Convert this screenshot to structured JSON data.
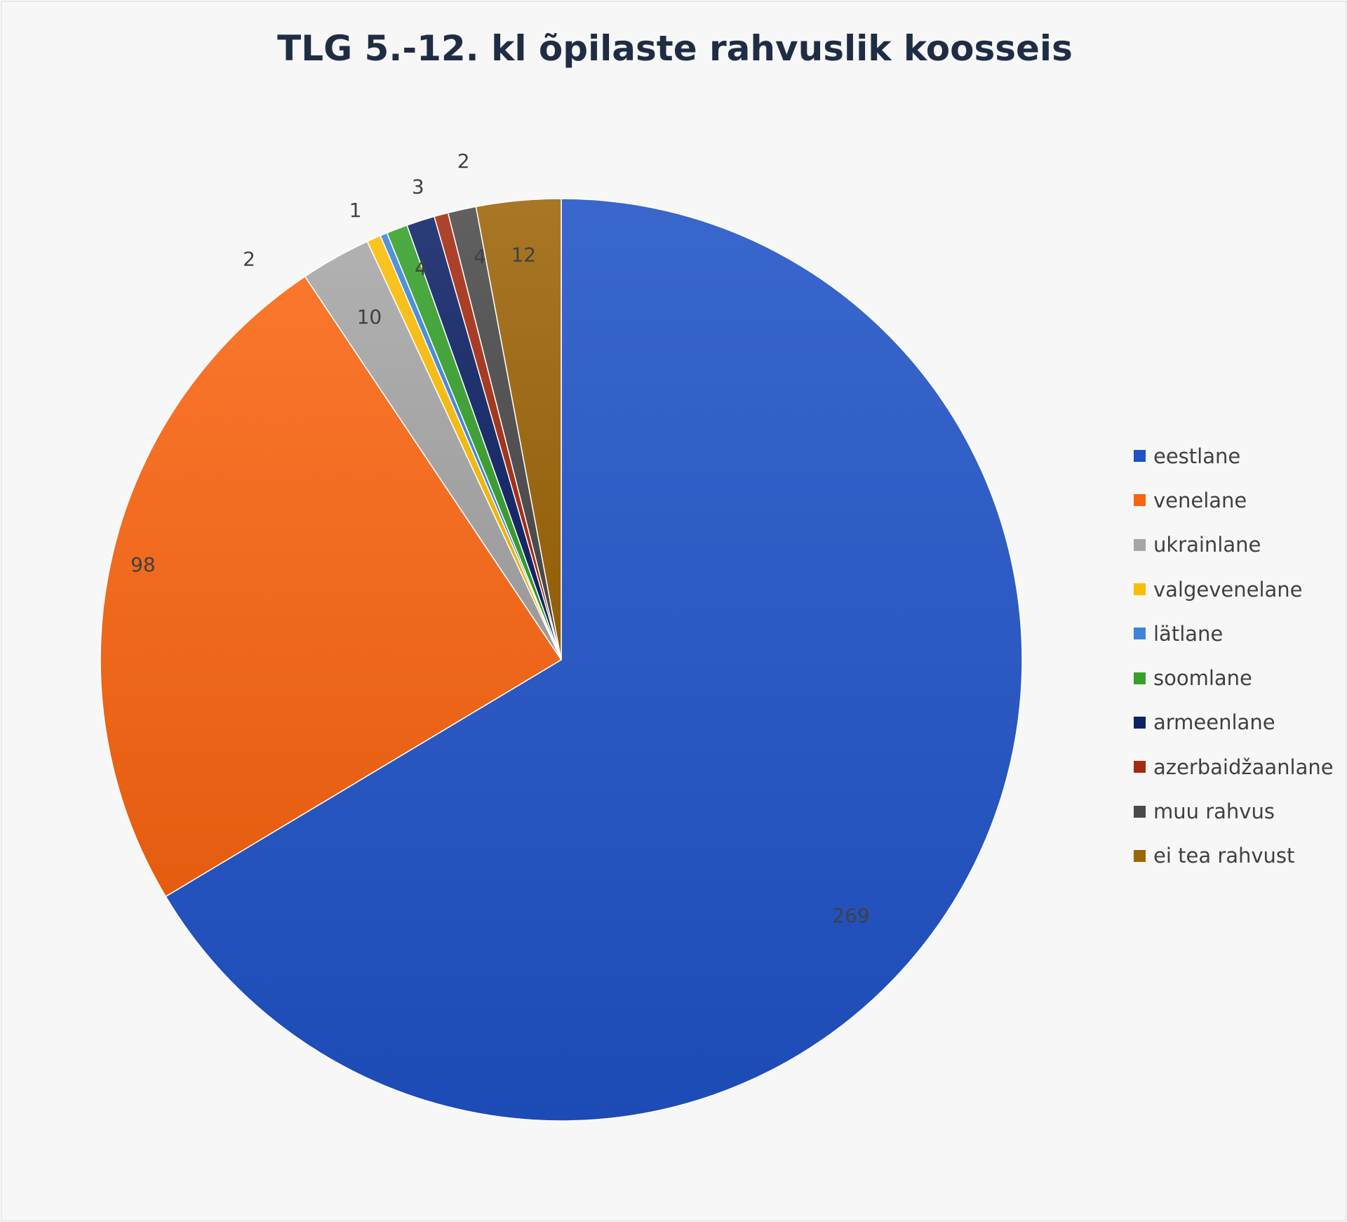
{
  "chart_data": {
    "type": "pie",
    "title": "TLG 5.-12. kl õpilaste rahvuslik koosseis",
    "categories": [
      "eestlane",
      "venelane",
      "ukrainlane",
      "valgevenelane",
      "lätlane",
      "soomlane",
      "armeenlane",
      "azerbaidžaanlane",
      "muu rahvus",
      "ei tea rahvust"
    ],
    "values": [
      269,
      98,
      10,
      2,
      1,
      3,
      4,
      2,
      4,
      12
    ],
    "value_labels": [
      "269",
      "98",
      "10",
      "2",
      "1",
      "3",
      "4",
      "2",
      "4",
      "12"
    ],
    "colors": [
      "#1f52c6",
      "#f96410",
      "#a6a6a6",
      "#fbbc04",
      "#3d85d9",
      "#36a02a",
      "#0e2366",
      "#a42b10",
      "#4a4a4a",
      "#9c6408"
    ],
    "start_angle_deg": 0,
    "direction": "clockwise",
    "legend_position": "right"
  }
}
